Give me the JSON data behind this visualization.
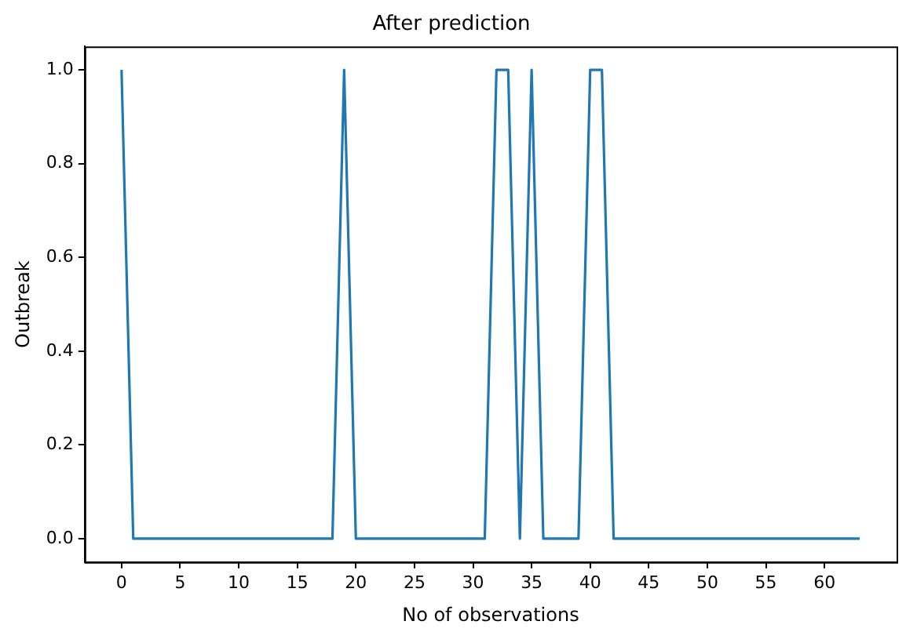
{
  "chart_data": {
    "type": "line",
    "title": "After prediction",
    "xlabel": "No of observations",
    "ylabel": "Outbreak",
    "x": [
      0,
      1,
      2,
      3,
      4,
      5,
      6,
      7,
      8,
      9,
      10,
      11,
      12,
      13,
      14,
      15,
      16,
      17,
      18,
      19,
      20,
      21,
      22,
      23,
      24,
      25,
      26,
      27,
      28,
      29,
      30,
      31,
      32,
      33,
      34,
      35,
      36,
      37,
      38,
      39,
      40,
      41,
      42,
      43,
      44,
      45,
      46,
      47,
      48,
      49,
      50,
      51,
      52,
      53,
      54,
      55,
      56,
      57,
      58,
      59,
      60,
      61,
      62,
      63
    ],
    "series": [
      {
        "color": "#1f77b4",
        "values": [
          1,
          0,
          0,
          0,
          0,
          0,
          0,
          0,
          0,
          0,
          0,
          0,
          0,
          0,
          0,
          0,
          0,
          0,
          0,
          1,
          0,
          0,
          0,
          0,
          0,
          0,
          0,
          0,
          0,
          0,
          0,
          0,
          1,
          1,
          0,
          1,
          0,
          0,
          0,
          0,
          1,
          1,
          0,
          0,
          0,
          0,
          0,
          0,
          0,
          0,
          0,
          0,
          0,
          0,
          0,
          0,
          0,
          0,
          0,
          0,
          0,
          0,
          0,
          0
        ]
      }
    ],
    "xlim": [
      -3.15,
      66.15
    ],
    "xticks": [
      0,
      5,
      10,
      15,
      20,
      25,
      30,
      35,
      40,
      45,
      50,
      55,
      60
    ],
    "ylim": [
      -0.05,
      1.05
    ],
    "yticks": [
      {
        "value": 0,
        "label": "0.0"
      },
      {
        "value": 0.2,
        "label": "0.2"
      },
      {
        "value": 0.4,
        "label": "0.4"
      },
      {
        "value": 0.6,
        "label": "0.6"
      },
      {
        "value": 0.8,
        "label": "0.8"
      },
      {
        "value": 1,
        "label": "1.0"
      }
    ],
    "grid": false,
    "legend": false,
    "marker": "none",
    "line_style": "solid"
  }
}
